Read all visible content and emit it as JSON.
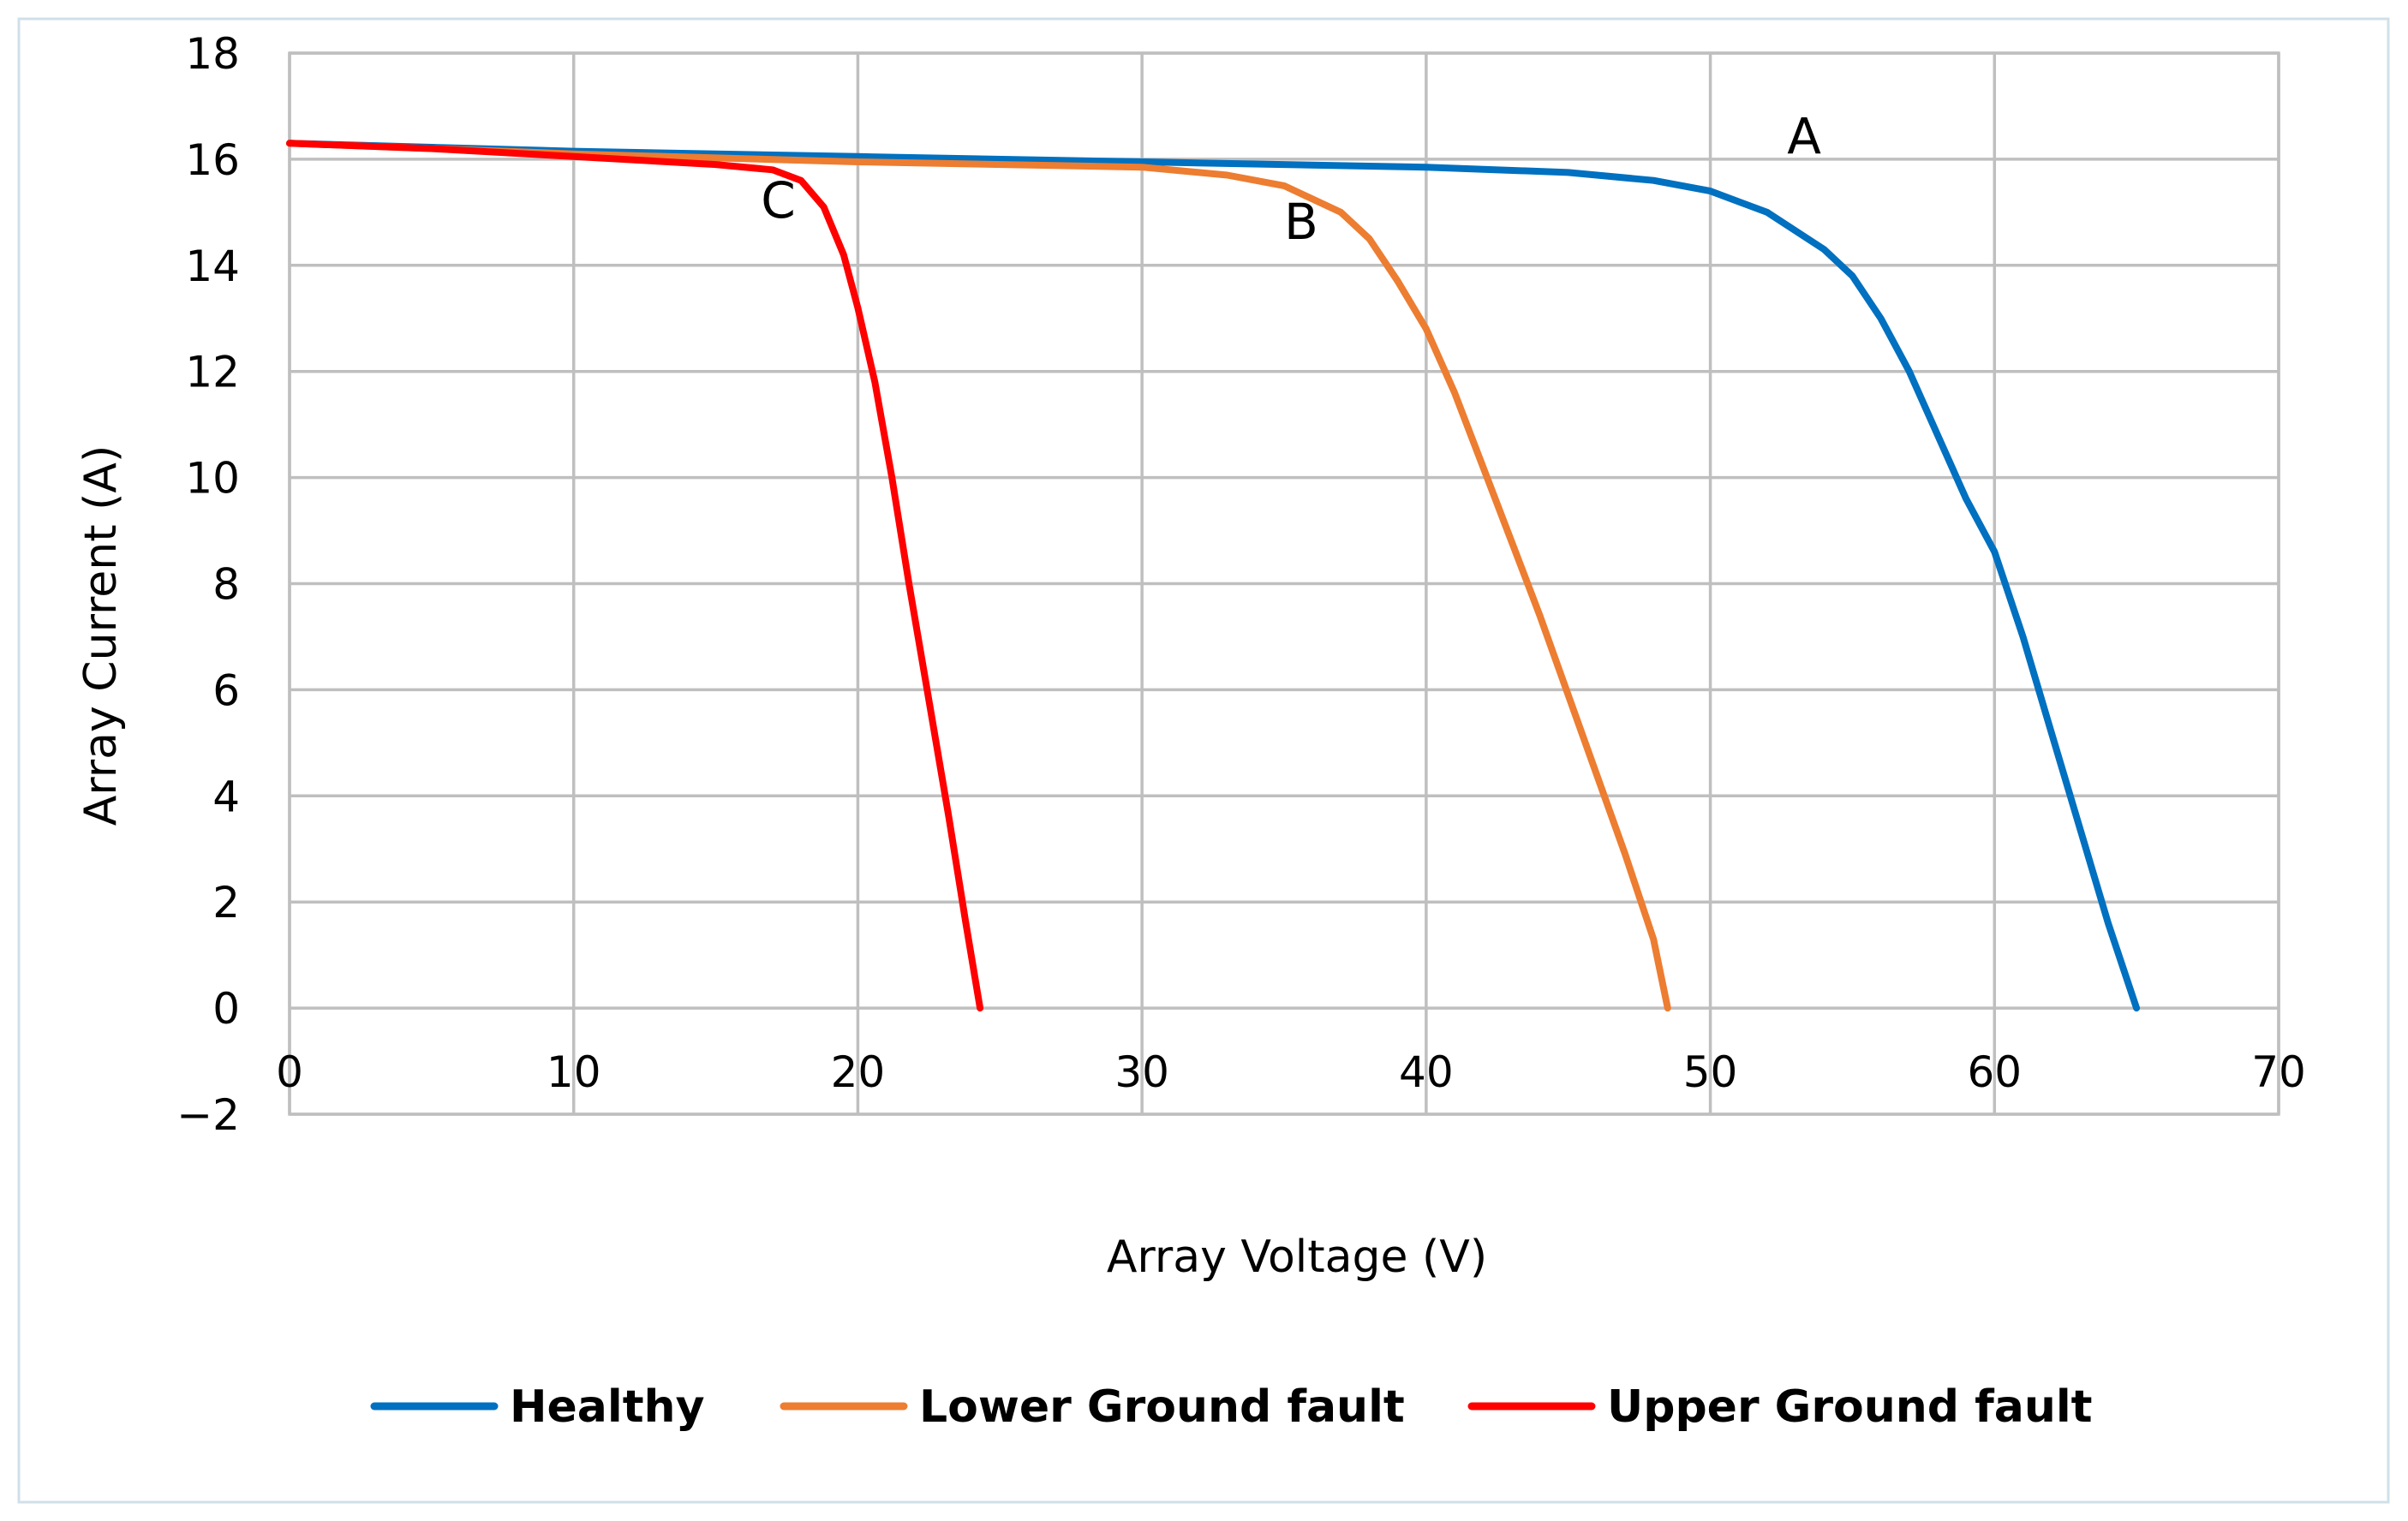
{
  "chart_data": {
    "type": "line",
    "title": "",
    "xlabel": "Array Voltage (V)",
    "ylabel": "Array Current (A)",
    "xlim": [
      0,
      70
    ],
    "ylim": [
      -2,
      18
    ],
    "xticks": [
      0,
      10,
      20,
      30,
      40,
      50,
      60,
      70
    ],
    "yticks": [
      -2,
      0,
      2,
      4,
      6,
      8,
      10,
      12,
      14,
      16,
      18
    ],
    "ytick_labels": [
      "−2",
      "0",
      "2",
      "4",
      "6",
      "8",
      "10",
      "12",
      "14",
      "16",
      "18"
    ],
    "grid": true,
    "legend_position": "bottom",
    "series": [
      {
        "name": "Healthy",
        "color": "#0070c0",
        "points": [
          [
            0,
            16.3
          ],
          [
            10,
            16.15
          ],
          [
            20,
            16.05
          ],
          [
            30,
            15.95
          ],
          [
            40,
            15.85
          ],
          [
            45,
            15.75
          ],
          [
            48,
            15.6
          ],
          [
            50,
            15.4
          ],
          [
            52,
            15.0
          ],
          [
            54,
            14.3
          ],
          [
            55,
            13.8
          ],
          [
            56,
            13.0
          ],
          [
            57,
            12.0
          ],
          [
            58,
            10.8
          ],
          [
            59,
            9.6
          ],
          [
            60,
            8.6
          ],
          [
            61,
            7.0
          ],
          [
            62,
            5.2
          ],
          [
            63,
            3.4
          ],
          [
            64,
            1.6
          ],
          [
            65,
            0
          ]
        ]
      },
      {
        "name": "Lower Ground fault",
        "color": "#ed7d31",
        "points": [
          [
            0,
            16.3
          ],
          [
            10,
            16.1
          ],
          [
            20,
            15.95
          ],
          [
            30,
            15.85
          ],
          [
            33,
            15.7
          ],
          [
            35,
            15.5
          ],
          [
            37,
            15.0
          ],
          [
            38,
            14.5
          ],
          [
            39,
            13.7
          ],
          [
            40,
            12.8
          ],
          [
            41,
            11.6
          ],
          [
            42,
            10.2
          ],
          [
            43,
            8.8
          ],
          [
            44,
            7.4
          ],
          [
            45,
            5.9
          ],
          [
            46,
            4.4
          ],
          [
            47,
            2.9
          ],
          [
            48,
            1.3
          ],
          [
            48.5,
            0
          ]
        ]
      },
      {
        "name": "Upper Ground fault",
        "color": "#ff0000",
        "points": [
          [
            0,
            16.3
          ],
          [
            5,
            16.2
          ],
          [
            10,
            16.05
          ],
          [
            15,
            15.9
          ],
          [
            17,
            15.8
          ],
          [
            18,
            15.6
          ],
          [
            18.8,
            15.1
          ],
          [
            19.5,
            14.2
          ],
          [
            20,
            13.2
          ],
          [
            20.6,
            11.8
          ],
          [
            21.2,
            10.0
          ],
          [
            21.8,
            8.0
          ],
          [
            22.5,
            5.8
          ],
          [
            23.2,
            3.6
          ],
          [
            23.8,
            1.6
          ],
          [
            24.3,
            0
          ]
        ]
      }
    ],
    "annotations": [
      {
        "text": "A",
        "x": 53.3,
        "y": 16.1
      },
      {
        "text": "B",
        "x": 35.6,
        "y": 14.5
      },
      {
        "text": "C",
        "x": 17.2,
        "y": 14.9
      }
    ]
  }
}
